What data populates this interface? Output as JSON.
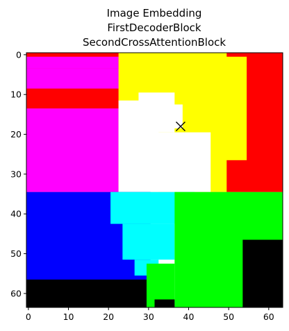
{
  "chart_data": {
    "type": "heatmap",
    "title_lines": [
      "Image Embedding",
      "FirstDecoderBlock",
      "SecondCrossAttentionBlock"
    ],
    "xlim": [
      -0.5,
      63.5
    ],
    "ylim": [
      63.5,
      -0.5
    ],
    "x_ticks": [
      0,
      10,
      20,
      30,
      40,
      50,
      60
    ],
    "y_ticks": [
      0,
      10,
      20,
      30,
      40,
      50,
      60
    ],
    "x_tick_labels": [
      "0",
      "10",
      "20",
      "30",
      "40",
      "50",
      "60"
    ],
    "y_tick_labels": [
      "0",
      "10",
      "20",
      "30",
      "40",
      "50",
      "60"
    ],
    "marker": {
      "x": 38,
      "y": 18,
      "symbol": "x",
      "color": "#000000"
    },
    "colors": {
      "red": "#ff0000",
      "magenta": "#ff00ff",
      "yellow": "#ffff00",
      "white": "#ffffff",
      "blue": "#0000ff",
      "cyan": "#00ffff",
      "green": "#00ff00",
      "black": "#000000"
    },
    "regions": [
      {
        "color": "red",
        "cols": [
          0,
          64
        ],
        "rows": [
          0,
          35
        ]
      },
      {
        "color": "magenta",
        "cols": [
          0,
          23
        ],
        "rows": [
          1,
          4
        ]
      },
      {
        "color": "magenta",
        "cols": [
          0,
          25
        ],
        "rows": [
          4,
          9
        ]
      },
      {
        "color": "magenta",
        "cols": [
          0,
          24
        ],
        "rows": [
          14,
          35
        ]
      },
      {
        "color": "yellow",
        "cols": [
          23,
          54
        ],
        "rows": [
          0,
          35
        ]
      },
      {
        "color": "red",
        "cols": [
          50,
          64
        ],
        "rows": [
          0,
          35
        ]
      },
      {
        "color": "yellow",
        "cols": [
          46,
          55
        ],
        "rows": [
          1,
          27
        ]
      },
      {
        "color": "white",
        "cols": [
          23,
          33
        ],
        "rows": [
          12,
          35
        ]
      },
      {
        "color": "white",
        "cols": [
          28,
          37
        ],
        "rows": [
          10,
          20
        ]
      },
      {
        "color": "white",
        "cols": [
          30,
          46
        ],
        "rows": [
          20,
          35
        ]
      },
      {
        "color": "white",
        "cols": [
          33,
          39
        ],
        "rows": [
          13,
          19
        ]
      },
      {
        "color": "blue",
        "cols": [
          0,
          31
        ],
        "rows": [
          35,
          64
        ]
      },
      {
        "color": "cyan",
        "cols": [
          21,
          42
        ],
        "rows": [
          35,
          43
        ]
      },
      {
        "color": "cyan",
        "cols": [
          24,
          37
        ],
        "rows": [
          43,
          52
        ]
      },
      {
        "color": "cyan",
        "cols": [
          27,
          33
        ],
        "rows": [
          52,
          56
        ]
      },
      {
        "color": "green",
        "cols": [
          37,
          64
        ],
        "rows": [
          35,
          64
        ]
      },
      {
        "color": "green",
        "cols": [
          30,
          37
        ],
        "rows": [
          53,
          64
        ]
      },
      {
        "color": "black",
        "cols": [
          54,
          64
        ],
        "rows": [
          47,
          64
        ]
      },
      {
        "color": "black",
        "cols": [
          0,
          30
        ],
        "rows": [
          57,
          64
        ]
      },
      {
        "color": "black",
        "cols": [
          32,
          37
        ],
        "rows": [
          62,
          64
        ]
      }
    ]
  }
}
